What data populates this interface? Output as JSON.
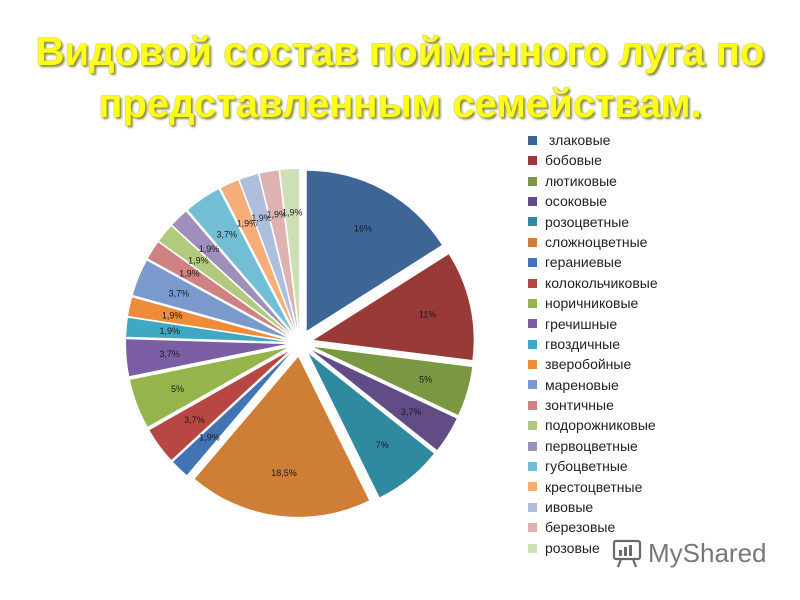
{
  "chart_data": {
    "type": "pie",
    "title": "Видовой состав пойменного луга по представленным семействам.",
    "legend_position": "right",
    "categories": [
      "злаковые",
      "бобовые",
      "лютиковые",
      "осоковые",
      "розоцветные",
      "сложноцветные",
      "гераниевые",
      "колокольчиковые",
      "норичниковые",
      "гречишные",
      "гвоздичные",
      "зверобойные",
      "мареновые",
      "зонтичные",
      "подорожниковые",
      "первоцветные",
      "губоцветные",
      "крестоцветные",
      "ивовые",
      "березовые",
      "розовые"
    ],
    "values": [
      16,
      11,
      5,
      3.7,
      7,
      18.5,
      1.9,
      3.7,
      5,
      3.7,
      1.9,
      1.9,
      3.7,
      1.9,
      1.9,
      1.9,
      3.7,
      1.9,
      1.9,
      1.9,
      1.9
    ],
    "data_labels": [
      "16%",
      "11%",
      "5%",
      "3,7%",
      "7%",
      "18,5%",
      "1,9%",
      "3,7%",
      "5%",
      "3,7%",
      "1,9%",
      "1,9%",
      "3,7%",
      "1,9%",
      "1,9%",
      "1,9%",
      "3,7%",
      "1,9%",
      "1,9%",
      "1,9%",
      "1,9%"
    ],
    "colors": [
      "#3d6596",
      "#983a38",
      "#7a9741",
      "#624c86",
      "#2f8a9f",
      "#cf7f35",
      "#4174b5",
      "#b84744",
      "#95b54c",
      "#7c5ea4",
      "#3fa9c4",
      "#ef8c3a",
      "#7a99cc",
      "#cf8281",
      "#b1ca7d",
      "#9f8fbd",
      "#72bfd5",
      "#f5ae78",
      "#aebfde",
      "#ddb2b1",
      "#cedfb6"
    ]
  },
  "title_lines": [
    "Видовой состав пойменного луга по",
    "представленным семействам."
  ],
  "legend_leading_space_first": " ",
  "watermark": {
    "text": "MyShared",
    "icon": "presentation-board-icon"
  }
}
